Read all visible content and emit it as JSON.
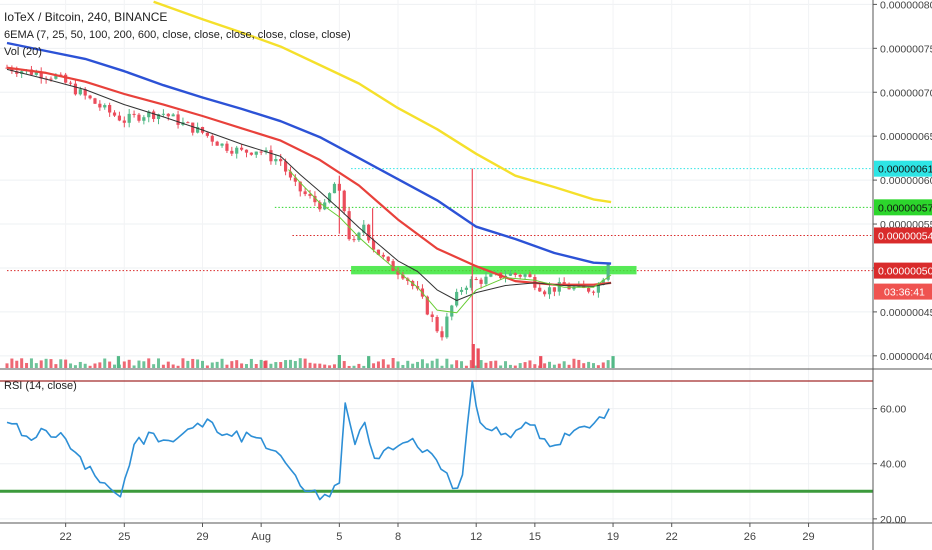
{
  "header": {
    "symbol_title": "IoTeX / Bitcoin, 240, BINANCE",
    "ema_indicator": "6EMA (7, 25, 50, 100, 200, 600, close, close, close, close, close, close)",
    "volume_indicator": "Vol (20)",
    "rsi_indicator": "RSI (14, close)"
  },
  "colors": {
    "candle_up": "#53b987",
    "candle_down": "#eb4d5c",
    "ema_7": "#66cc33",
    "ema_25": "#333333",
    "ema_50": "#e8413b",
    "ema_100": "#2c52d6",
    "ema_200": "#f5e02b",
    "rsi_line": "#2d8fd6",
    "rsi_upper_band": "#a22a2a",
    "rsi_lower_band": "#3c9a3c",
    "support_zone": "#39e639",
    "level_cyan": "#2ee5e5",
    "level_green": "#2cd62c",
    "level_red": "#d92b2b",
    "current_price_label": "#ef5350"
  },
  "chart_data": [
    {
      "type": "candlestick",
      "title": "IoTeX / Bitcoin, 240, BINANCE",
      "x_ticks": [
        "22",
        "25",
        "29",
        "Aug",
        "5",
        "8",
        "12",
        "15",
        "19",
        "22",
        "26",
        "29"
      ],
      "x_tick_day_index": [
        3,
        6,
        10,
        13,
        17,
        20,
        24,
        27,
        31,
        34,
        38,
        41
      ],
      "x_range_days": [
        0,
        43.5
      ],
      "y_ticks": [
        4e-07,
        4.5e-07,
        5e-07,
        5.5e-07,
        6e-07,
        6.5e-07,
        7e-07,
        7.5e-07,
        8e-07
      ],
      "y_tick_labels": [
        "0.00000040",
        "0.00000045",
        "0.00000050",
        "0.00000055",
        "0.00000060",
        "0.00000065",
        "0.00000070",
        "0.00000075",
        "0.00000080"
      ],
      "ylim": [
        3.85e-07,
        8.05e-07
      ],
      "price_path": [
        [
          0,
          7.28e-07
        ],
        [
          1.5,
          7.22e-07
        ],
        [
          2.5,
          7.18e-07
        ],
        [
          4,
          6.95e-07
        ],
        [
          5,
          6.8e-07
        ],
        [
          6,
          6.68e-07
        ],
        [
          7,
          6.75e-07
        ],
        [
          8,
          6.76e-07
        ],
        [
          9,
          6.64e-07
        ],
        [
          10,
          6.54e-07
        ],
        [
          11,
          6.4e-07
        ],
        [
          12,
          6.32e-07
        ],
        [
          12.8,
          6.35e-07
        ],
        [
          13.5,
          6.26e-07
        ],
        [
          14,
          6.22e-07
        ],
        [
          14.6,
          5.95e-07
        ],
        [
          15.5,
          5.79e-07
        ],
        [
          16.3,
          5.68e-07
        ],
        [
          16.7,
          5.98e-07
        ],
        [
          17.2,
          5.72e-07
        ],
        [
          17.5,
          5.36e-07
        ],
        [
          17.8,
          5.25e-07
        ],
        [
          18.3,
          5.53e-07
        ],
        [
          18.6,
          5.28e-07
        ],
        [
          19.5,
          5.03e-07
        ],
        [
          20.3,
          4.93e-07
        ],
        [
          21,
          4.72e-07
        ],
        [
          21.6,
          4.48e-07
        ],
        [
          22.2,
          4.22e-07
        ],
        [
          22.7,
          4.54e-07
        ],
        [
          23.2,
          4.76e-07
        ],
        [
          23.6,
          4.84e-07
        ],
        [
          24.5,
          4.87e-07
        ],
        [
          25.5,
          4.93e-07
        ],
        [
          26.5,
          4.92e-07
        ],
        [
          27.5,
          4.75e-07
        ],
        [
          28.5,
          4.79e-07
        ],
        [
          29.5,
          4.75e-07
        ],
        [
          30.2,
          4.78e-07
        ],
        [
          30.6,
          4.96e-07
        ],
        [
          30.9,
          5.23e-07
        ]
      ],
      "horizontal_levels": [
        {
          "label": "0.00000061",
          "value": 6.13e-07,
          "line": "cyan-dotted"
        },
        {
          "label": "0.00000057",
          "value": 5.69e-07,
          "line": "green-dotted"
        },
        {
          "label": "0.00000054",
          "value": 5.37e-07,
          "line": "red-dotted"
        },
        {
          "label": "0.00000050",
          "value": 4.97e-07,
          "line": "red-dotted"
        }
      ],
      "support_zone": {
        "from_day": 17.6,
        "to_day": 32.2,
        "y_low": 4.95e-07,
        "y_high": 5e-07
      },
      "spike_wicks": [
        {
          "day": 23.8,
          "high": 6.13e-07,
          "low": 3.95e-07
        },
        {
          "day": 17.0,
          "high": 6.05e-07,
          "low": 5.39e-07
        },
        {
          "day": 18.7,
          "high": 5.68e-07,
          "low": 5.25e-07
        }
      ],
      "countdown": "03:36:41",
      "ema_series": [
        {
          "name": "EMA 7",
          "points": [
            [
              14.4,
              6.12e-07
            ],
            [
              15,
              5.97e-07
            ],
            [
              16,
              5.74e-07
            ],
            [
              17,
              5.58e-07
            ],
            [
              18,
              5.35e-07
            ],
            [
              19,
              5.15e-07
            ],
            [
              20,
              4.96e-07
            ],
            [
              21,
              4.78e-07
            ],
            [
              22,
              4.52e-07
            ],
            [
              23,
              4.49e-07
            ],
            [
              24,
              4.75e-07
            ],
            [
              25.5,
              4.89e-07
            ],
            [
              27,
              4.86e-07
            ],
            [
              28.5,
              4.78e-07
            ],
            [
              30,
              4.78e-07
            ],
            [
              30.9,
              4.92e-07
            ]
          ]
        },
        {
          "name": "EMA 25",
          "points": [
            [
              0,
              7.26e-07
            ],
            [
              2,
              7.15e-07
            ],
            [
              4,
              7.03e-07
            ],
            [
              6,
              6.86e-07
            ],
            [
              8,
              6.72e-07
            ],
            [
              10,
              6.57e-07
            ],
            [
              12,
              6.41e-07
            ],
            [
              14,
              6.27e-07
            ],
            [
              15,
              6.06e-07
            ],
            [
              16,
              5.87e-07
            ],
            [
              17,
              5.67e-07
            ],
            [
              18,
              5.46e-07
            ],
            [
              19,
              5.27e-07
            ],
            [
              20,
              5.08e-07
            ],
            [
              21,
              4.96e-07
            ],
            [
              22,
              4.75e-07
            ],
            [
              23,
              4.63e-07
            ],
            [
              24,
              4.72e-07
            ],
            [
              25.5,
              4.8e-07
            ],
            [
              27,
              4.83e-07
            ],
            [
              28.5,
              4.8e-07
            ],
            [
              30,
              4.79e-07
            ],
            [
              30.9,
              4.83e-07
            ]
          ]
        },
        {
          "name": "EMA 50",
          "points": [
            [
              0,
              7.28e-07
            ],
            [
              2,
              7.22e-07
            ],
            [
              4,
              7.12e-07
            ],
            [
              6,
              6.98e-07
            ],
            [
              8,
              6.86e-07
            ],
            [
              10,
              6.73e-07
            ],
            [
              12,
              6.59e-07
            ],
            [
              14,
              6.45e-07
            ],
            [
              16,
              6.23e-07
            ],
            [
              18,
              5.94e-07
            ],
            [
              20,
              5.55e-07
            ],
            [
              22,
              5.22e-07
            ],
            [
              24,
              5.02e-07
            ],
            [
              26,
              4.85e-07
            ],
            [
              28,
              4.81e-07
            ],
            [
              30,
              4.81e-07
            ],
            [
              30.9,
              4.83e-07
            ]
          ]
        },
        {
          "name": "EMA 100",
          "points": [
            [
              0,
              7.56e-07
            ],
            [
              2,
              7.47e-07
            ],
            [
              4,
              7.38e-07
            ],
            [
              6,
              7.24e-07
            ],
            [
              8,
              7.08e-07
            ],
            [
              10,
              6.94e-07
            ],
            [
              12,
              6.81e-07
            ],
            [
              14,
              6.67e-07
            ],
            [
              16,
              6.49e-07
            ],
            [
              18,
              6.25e-07
            ],
            [
              20,
              6.01e-07
            ],
            [
              22,
              5.77e-07
            ],
            [
              24,
              5.47e-07
            ],
            [
              26,
              5.33e-07
            ],
            [
              28,
              5.17e-07
            ],
            [
              30,
              5.06e-07
            ],
            [
              30.9,
              5.05e-07
            ]
          ]
        },
        {
          "name": "EMA 200",
          "points": [
            [
              7.5,
              8.03e-07
            ],
            [
              10,
              7.83e-07
            ],
            [
              12,
              7.68e-07
            ],
            [
              14,
              7.52e-07
            ],
            [
              16,
              7.31e-07
            ],
            [
              18,
              7.1e-07
            ],
            [
              20,
              6.82e-07
            ],
            [
              22,
              6.58e-07
            ],
            [
              24,
              6.3e-07
            ],
            [
              26,
              6.05e-07
            ],
            [
              28,
              5.92e-07
            ],
            [
              30,
              5.78e-07
            ],
            [
              30.9,
              5.75e-07
            ]
          ]
        }
      ]
    },
    {
      "type": "bar",
      "title": "Vol (20)",
      "description_of_values": "volume per candle, relative scale (no axis labels shown)",
      "spikes": [
        {
          "day": 5.7,
          "rel": 0.9,
          "dir": "up"
        },
        {
          "day": 13.2,
          "rel": 0.45,
          "dir": "down"
        },
        {
          "day": 17.0,
          "rel": 1.0,
          "dir": "up"
        },
        {
          "day": 18.5,
          "rel": 0.9,
          "dir": "up"
        },
        {
          "day": 23.85,
          "rel": 2.0,
          "dir": "down"
        },
        {
          "day": 24.1,
          "rel": 1.6,
          "dir": "down"
        },
        {
          "day": 27.3,
          "rel": 0.9,
          "dir": "down"
        },
        {
          "day": 31.0,
          "rel": 0.9,
          "dir": "up"
        }
      ]
    },
    {
      "type": "line",
      "title": "RSI (14, close)",
      "y_ticks": [
        20,
        40,
        60
      ],
      "y_tick_labels": [
        "20.00",
        "40.00",
        "60.00"
      ],
      "ylim": [
        18.5,
        74
      ],
      "bands": {
        "upper": 70,
        "lower": 30
      },
      "x": [
        0,
        1,
        2,
        3,
        4,
        5,
        5.8,
        6.5,
        7.5,
        8.5,
        9.5,
        10.5,
        11.5,
        12.5,
        13.5,
        14.5,
        15,
        15.5,
        16,
        16.5,
        17,
        17.3,
        17.8,
        18.3,
        18.8,
        19.5,
        20.5,
        21.5,
        22.2,
        22.8,
        23.3,
        23.8,
        24.2,
        24.8,
        25.5,
        26.3,
        27,
        27.5,
        28.3,
        29,
        29.8,
        30.3,
        30.8
      ],
      "values": [
        55,
        50,
        52,
        49,
        38,
        33,
        28,
        47,
        51,
        48,
        53,
        55,
        50,
        50,
        45,
        38,
        32,
        30,
        27,
        28,
        33,
        62,
        47,
        55,
        42,
        46,
        48,
        45,
        38,
        31,
        36,
        70,
        55,
        52,
        51,
        53,
        54,
        49,
        47,
        52,
        53,
        57,
        60
      ]
    }
  ],
  "x_axis": {
    "ticks": [
      {
        "label": "22",
        "day": 3
      },
      {
        "label": "25",
        "day": 6
      },
      {
        "label": "29",
        "day": 10
      },
      {
        "label": "Aug",
        "day": 13
      },
      {
        "label": "5",
        "day": 17
      },
      {
        "label": "8",
        "day": 20
      },
      {
        "label": "12",
        "day": 24
      },
      {
        "label": "15",
        "day": 27
      },
      {
        "label": "19",
        "day": 31
      },
      {
        "label": "22",
        "day": 34
      },
      {
        "label": "26",
        "day": 38
      },
      {
        "label": "29",
        "day": 41
      }
    ]
  }
}
